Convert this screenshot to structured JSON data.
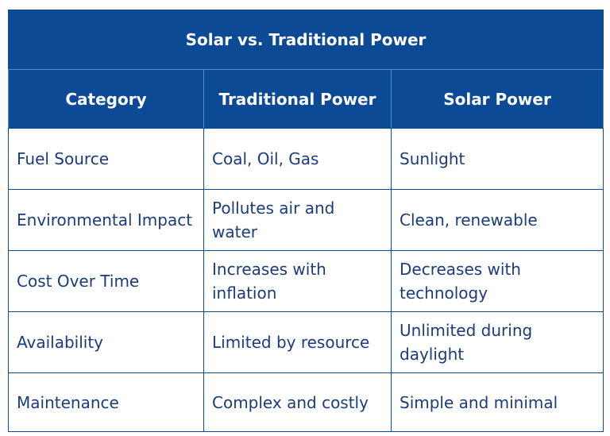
{
  "title": "Solar vs. Traditional Power",
  "headers": [
    "Category",
    "Traditional Power",
    "Solar Power"
  ],
  "rows": [
    [
      "Fuel Source",
      "Coal, Oil, Gas",
      "Sunlight"
    ],
    [
      "Environmental Impact",
      "Pollutes air and water",
      "Clean, renewable"
    ],
    [
      "Cost Over Time",
      "Increases with inflation",
      "Decreases with technology"
    ],
    [
      "Availability",
      "Limited by resource",
      "Unlimited during daylight"
    ],
    [
      "Maintenance",
      "Complex and costly",
      "Simple and minimal"
    ]
  ],
  "colors": {
    "header_bg": "#0d4a96",
    "header_text": "#ffffff",
    "body_text": "#1b3c7a",
    "border": "#0d4a96"
  }
}
